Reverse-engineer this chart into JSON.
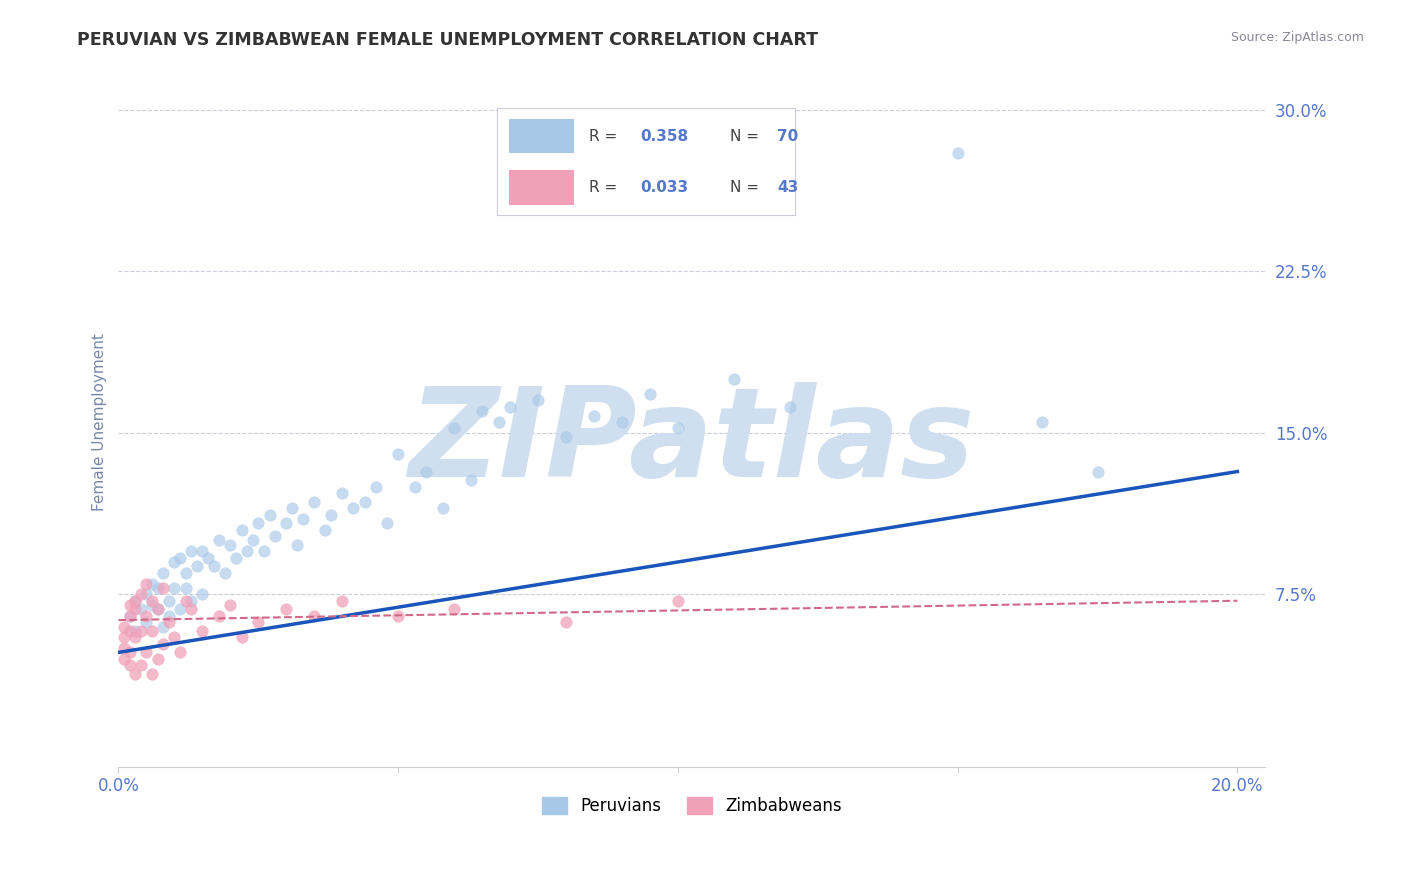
{
  "title": "PERUVIAN VS ZIMBABWEAN FEMALE UNEMPLOYMENT CORRELATION CHART",
  "source": "Source: ZipAtlas.com",
  "ylabel": "Female Unemployment",
  "xlim": [
    0.0,
    0.205
  ],
  "ylim": [
    -0.005,
    0.315
  ],
  "ytick_positions": [
    0.075,
    0.15,
    0.225,
    0.3
  ],
  "ytick_labels": [
    "7.5%",
    "15.0%",
    "22.5%",
    "30.0%"
  ],
  "xtick_positions": [
    0.0,
    0.05,
    0.1,
    0.15,
    0.2
  ],
  "xtick_labels": [
    "0.0%",
    "",
    "",
    "",
    "20.0%"
  ],
  "r_peru": "0.358",
  "n_peru": "70",
  "r_zim": "0.033",
  "n_zim": "43",
  "blue_scatter_color": "#a8c8e8",
  "pink_scatter_color": "#f0a0b8",
  "blue_line_color": "#1a55bb",
  "pink_line_color": "#d06888",
  "grid_color": "#ccccdd",
  "title_color": "#333333",
  "tick_label_color": "#5577cc",
  "ylabel_color": "#7788aa",
  "source_color": "#888899",
  "watermark_color": "#d0dff0",
  "legend_border_color": "#ccccdd",
  "blue_line_start_y": 0.048,
  "blue_line_end_y": 0.132,
  "pink_line_start_y": 0.063,
  "pink_line_end_y": 0.072,
  "peru_x": [
    0.002,
    0.003,
    0.003,
    0.004,
    0.005,
    0.005,
    0.006,
    0.006,
    0.007,
    0.007,
    0.008,
    0.008,
    0.009,
    0.009,
    0.01,
    0.01,
    0.011,
    0.011,
    0.012,
    0.012,
    0.013,
    0.013,
    0.014,
    0.015,
    0.015,
    0.016,
    0.017,
    0.018,
    0.019,
    0.02,
    0.021,
    0.022,
    0.023,
    0.024,
    0.025,
    0.026,
    0.027,
    0.028,
    0.03,
    0.031,
    0.032,
    0.033,
    0.035,
    0.037,
    0.038,
    0.04,
    0.042,
    0.044,
    0.046,
    0.048,
    0.05,
    0.053,
    0.055,
    0.058,
    0.06,
    0.063,
    0.065,
    0.068,
    0.07,
    0.075,
    0.08,
    0.085,
    0.09,
    0.095,
    0.1,
    0.11,
    0.12,
    0.15,
    0.165,
    0.175
  ],
  "peru_y": [
    0.065,
    0.072,
    0.058,
    0.068,
    0.075,
    0.062,
    0.07,
    0.08,
    0.068,
    0.078,
    0.06,
    0.085,
    0.072,
    0.065,
    0.09,
    0.078,
    0.092,
    0.068,
    0.085,
    0.078,
    0.095,
    0.072,
    0.088,
    0.095,
    0.075,
    0.092,
    0.088,
    0.1,
    0.085,
    0.098,
    0.092,
    0.105,
    0.095,
    0.1,
    0.108,
    0.095,
    0.112,
    0.102,
    0.108,
    0.115,
    0.098,
    0.11,
    0.118,
    0.105,
    0.112,
    0.122,
    0.115,
    0.118,
    0.125,
    0.108,
    0.14,
    0.125,
    0.132,
    0.115,
    0.152,
    0.128,
    0.16,
    0.155,
    0.162,
    0.165,
    0.148,
    0.158,
    0.155,
    0.168,
    0.152,
    0.175,
    0.162,
    0.28,
    0.155,
    0.132
  ],
  "zim_x": [
    0.001,
    0.001,
    0.001,
    0.001,
    0.002,
    0.002,
    0.002,
    0.002,
    0.002,
    0.003,
    0.003,
    0.003,
    0.003,
    0.004,
    0.004,
    0.004,
    0.005,
    0.005,
    0.005,
    0.006,
    0.006,
    0.006,
    0.007,
    0.007,
    0.008,
    0.008,
    0.009,
    0.01,
    0.011,
    0.012,
    0.013,
    0.015,
    0.018,
    0.02,
    0.022,
    0.025,
    0.03,
    0.035,
    0.04,
    0.05,
    0.06,
    0.08,
    0.1
  ],
  "zim_y": [
    0.06,
    0.055,
    0.05,
    0.045,
    0.065,
    0.07,
    0.058,
    0.048,
    0.042,
    0.068,
    0.072,
    0.055,
    0.038,
    0.075,
    0.058,
    0.042,
    0.08,
    0.065,
    0.048,
    0.072,
    0.058,
    0.038,
    0.068,
    0.045,
    0.078,
    0.052,
    0.062,
    0.055,
    0.048,
    0.072,
    0.068,
    0.058,
    0.065,
    0.07,
    0.055,
    0.062,
    0.068,
    0.065,
    0.072,
    0.065,
    0.068,
    0.062,
    0.072
  ]
}
